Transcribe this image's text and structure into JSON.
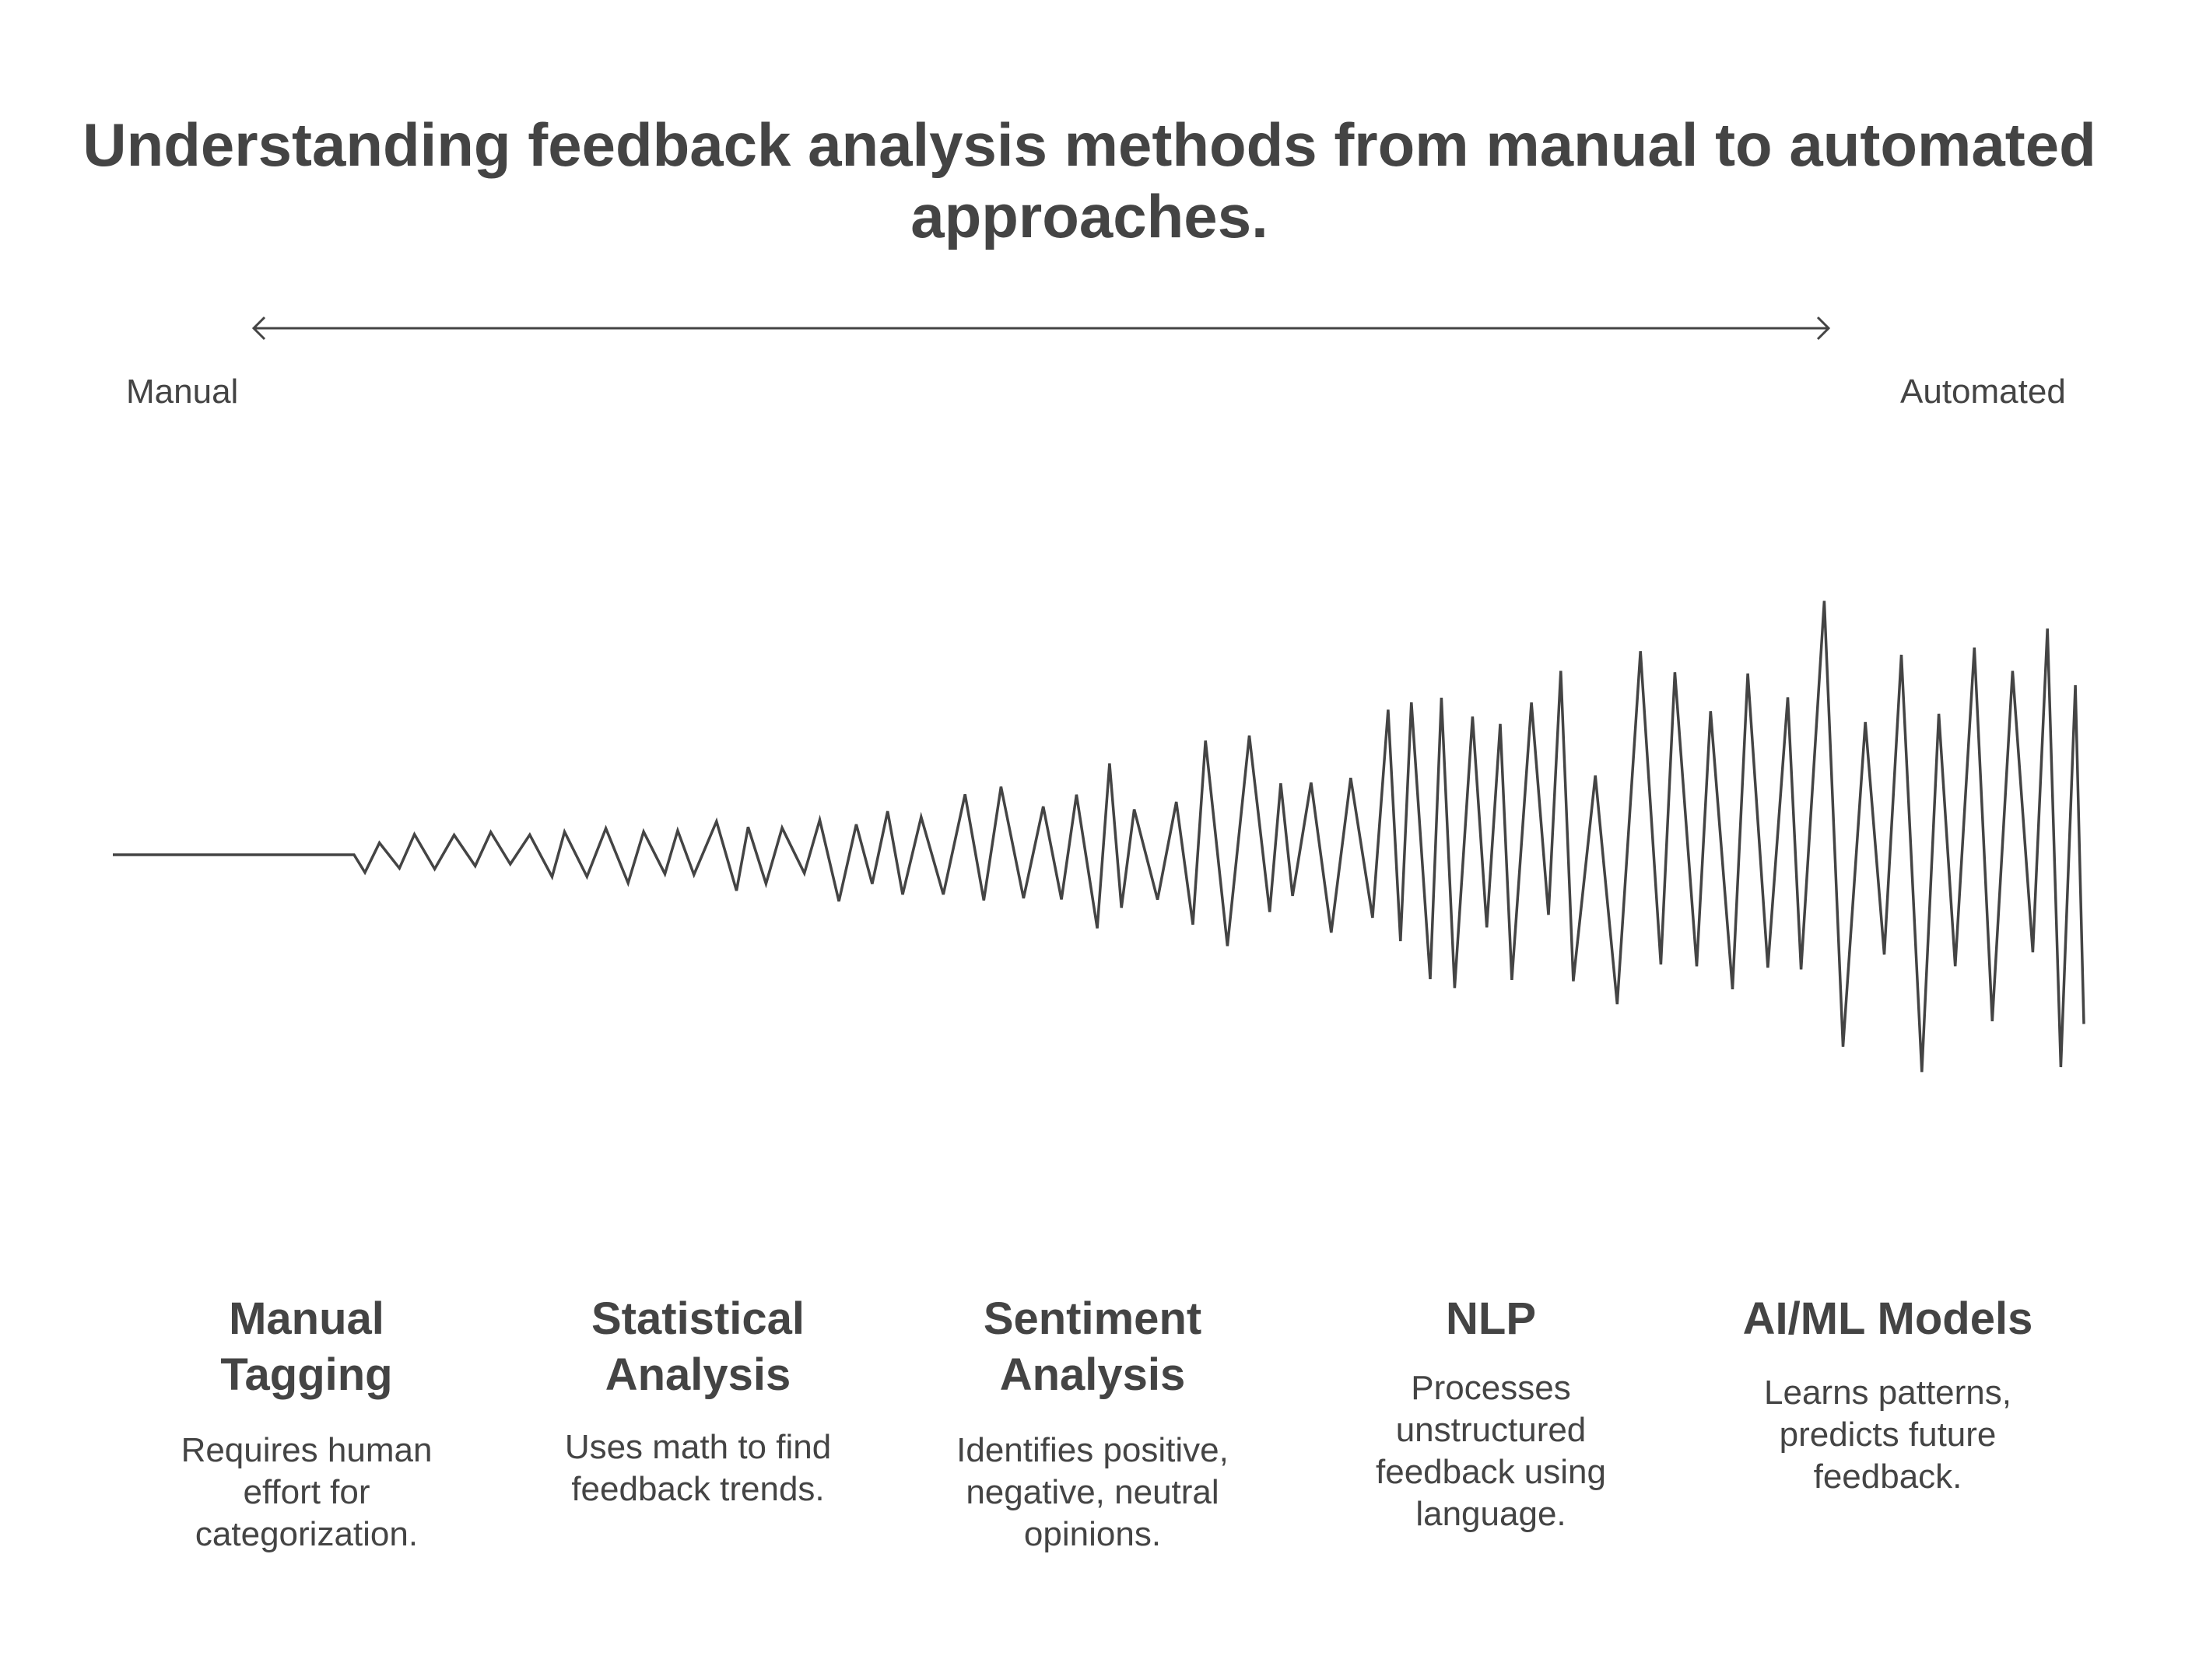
{
  "title": "Understanding feedback analysis methods from manual to automated approaches.",
  "scale": {
    "start_label": "Manual",
    "end_label": "Automated"
  },
  "methods": [
    {
      "title": "Manual Tagging",
      "description": "Requires human effort for categorization."
    },
    {
      "title": "Statistical Analysis",
      "description": "Uses math to find feedback trends."
    },
    {
      "title": "Sentiment Analysis",
      "description": "Identifies positive, negative, neutral opinions."
    },
    {
      "title": "NLP",
      "description": "Processes unstructured feedback using language."
    },
    {
      "title": "AI/ML Models",
      "description": "Learns patterns, predicts future feedback."
    }
  ],
  "colors": {
    "text": "#444444",
    "line": "#444444",
    "background": "#ffffff"
  }
}
